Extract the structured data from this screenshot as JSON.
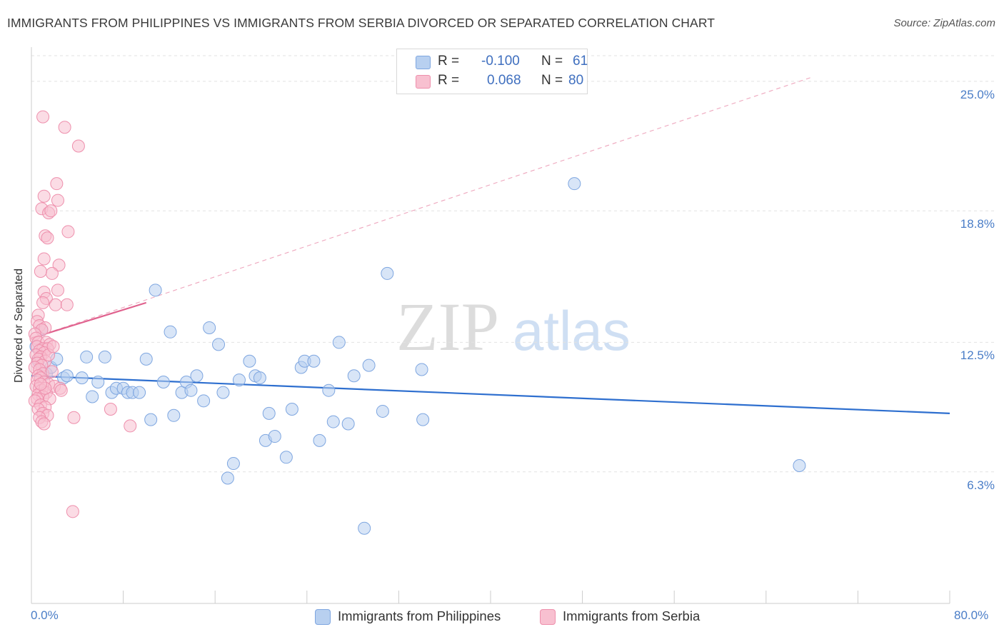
{
  "title": "IMMIGRANTS FROM PHILIPPINES VS IMMIGRANTS FROM SERBIA DIVORCED OR SEPARATED CORRELATION CHART",
  "source": "Source: ZipAtlas.com",
  "watermark": {
    "zip": "ZIP",
    "atlas": "atlas"
  },
  "legend": {
    "r_label": "R =",
    "n_label": "N =",
    "rows": [
      {
        "r": "-0.100",
        "n": "61",
        "color": "#b8d0f0",
        "border": "#7ea6e0"
      },
      {
        "r": "0.068",
        "n": "80",
        "color": "#f8c0d0",
        "border": "#ee8fac"
      }
    ]
  },
  "chart_data": {
    "type": "scatter",
    "title": "IMMIGRANTS FROM PHILIPPINES VS IMMIGRANTS FROM SERBIA DIVORCED OR SEPARATED CORRELATION CHART",
    "xlabel": "",
    "ylabel": "Divorced or Separated",
    "xlim": [
      0,
      80
    ],
    "ylim": [
      0,
      26.5
    ],
    "x_tick_labels": [
      "0.0%",
      "80.0%"
    ],
    "y_ticks": [
      6.3,
      12.5,
      18.8,
      25.0
    ],
    "y_tick_labels": [
      "6.3%",
      "12.5%",
      "18.8%",
      "25.0%"
    ],
    "grid": true,
    "series": [
      {
        "name": "Immigrants from Philippines",
        "color": "#7ea6e0",
        "fill": "#b8d0f0",
        "trend": {
          "x": [
            0.0,
            80.0
          ],
          "y": [
            10.9,
            9.1
          ],
          "color": "#2e6fcf"
        },
        "points": [
          [
            0.6,
            11.6
          ],
          [
            0.9,
            13.1
          ],
          [
            1.3,
            11.0
          ],
          [
            1.7,
            11.3
          ],
          [
            2.2,
            11.7
          ],
          [
            2.8,
            10.8
          ],
          [
            3.1,
            10.9
          ],
          [
            4.4,
            10.8
          ],
          [
            4.8,
            11.8
          ],
          [
            5.3,
            9.9
          ],
          [
            5.8,
            10.6
          ],
          [
            6.4,
            11.8
          ],
          [
            7.0,
            10.1
          ],
          [
            7.4,
            10.3
          ],
          [
            8.0,
            10.3
          ],
          [
            8.4,
            10.1
          ],
          [
            8.8,
            10.1
          ],
          [
            9.4,
            10.1
          ],
          [
            10.0,
            11.7
          ],
          [
            10.4,
            8.8
          ],
          [
            10.8,
            15.0
          ],
          [
            11.5,
            10.6
          ],
          [
            12.1,
            13.0
          ],
          [
            12.4,
            9.0
          ],
          [
            13.1,
            10.1
          ],
          [
            13.5,
            10.6
          ],
          [
            13.9,
            10.2
          ],
          [
            14.4,
            10.9
          ],
          [
            15.0,
            9.7
          ],
          [
            15.5,
            13.2
          ],
          [
            16.3,
            12.4
          ],
          [
            16.7,
            10.1
          ],
          [
            17.1,
            6.0
          ],
          [
            17.6,
            6.7
          ],
          [
            18.1,
            10.7
          ],
          [
            19.0,
            11.6
          ],
          [
            19.5,
            10.9
          ],
          [
            19.9,
            10.8
          ],
          [
            20.4,
            7.8
          ],
          [
            20.7,
            9.1
          ],
          [
            21.2,
            8.0
          ],
          [
            22.2,
            7.0
          ],
          [
            22.7,
            9.3
          ],
          [
            23.5,
            11.3
          ],
          [
            23.8,
            11.6
          ],
          [
            24.6,
            11.6
          ],
          [
            25.1,
            7.8
          ],
          [
            25.9,
            10.2
          ],
          [
            26.3,
            8.7
          ],
          [
            26.8,
            12.5
          ],
          [
            27.6,
            8.6
          ],
          [
            28.1,
            10.9
          ],
          [
            29.0,
            3.6
          ],
          [
            29.4,
            11.4
          ],
          [
            30.6,
            9.2
          ],
          [
            31.0,
            15.8
          ],
          [
            34.0,
            11.2
          ],
          [
            34.1,
            8.8
          ],
          [
            47.3,
            20.1
          ],
          [
            66.9,
            6.6
          ],
          [
            0.4,
            12.3
          ]
        ]
      },
      {
        "name": "Immigrants from Serbia",
        "color": "#ee8fac",
        "fill": "#f8c0d0",
        "trend": {
          "x": [
            0.0,
            10.0
          ],
          "y": [
            12.7,
            14.4
          ],
          "color": "#e0628e"
        },
        "trend_extended": {
          "x": [
            0.0,
            68.0
          ],
          "y": [
            12.7,
            25.2
          ]
        },
        "points": [
          [
            1.0,
            23.3
          ],
          [
            2.9,
            22.8
          ],
          [
            4.1,
            21.9
          ],
          [
            2.2,
            20.1
          ],
          [
            1.1,
            19.5
          ],
          [
            2.3,
            19.3
          ],
          [
            0.9,
            18.9
          ],
          [
            1.5,
            18.7
          ],
          [
            1.7,
            18.8
          ],
          [
            3.2,
            17.8
          ],
          [
            1.2,
            17.6
          ],
          [
            1.4,
            17.5
          ],
          [
            1.1,
            16.5
          ],
          [
            2.4,
            16.2
          ],
          [
            1.8,
            15.8
          ],
          [
            0.8,
            15.9
          ],
          [
            2.3,
            15.0
          ],
          [
            1.1,
            14.9
          ],
          [
            1.3,
            14.6
          ],
          [
            1.0,
            14.4
          ],
          [
            2.1,
            14.3
          ],
          [
            3.1,
            14.3
          ],
          [
            0.6,
            13.8
          ],
          [
            0.5,
            13.5
          ],
          [
            0.7,
            13.3
          ],
          [
            1.2,
            13.2
          ],
          [
            0.9,
            13.1
          ],
          [
            0.3,
            12.9
          ],
          [
            0.4,
            12.7
          ],
          [
            0.6,
            12.5
          ],
          [
            1.3,
            12.5
          ],
          [
            1.6,
            12.4
          ],
          [
            0.5,
            12.3
          ],
          [
            1.0,
            12.2
          ],
          [
            1.4,
            12.2
          ],
          [
            0.7,
            12.1
          ],
          [
            1.1,
            12.0
          ],
          [
            0.4,
            11.9
          ],
          [
            0.8,
            11.8
          ],
          [
            0.6,
            11.7
          ],
          [
            1.2,
            11.6
          ],
          [
            0.5,
            11.5
          ],
          [
            0.9,
            11.4
          ],
          [
            0.3,
            11.3
          ],
          [
            0.7,
            11.2
          ],
          [
            1.0,
            11.0
          ],
          [
            0.6,
            10.9
          ],
          [
            0.8,
            10.8
          ],
          [
            0.5,
            10.7
          ],
          [
            1.1,
            10.6
          ],
          [
            1.5,
            10.5
          ],
          [
            0.4,
            10.4
          ],
          [
            0.7,
            10.3
          ],
          [
            0.9,
            10.2
          ],
          [
            1.3,
            10.1
          ],
          [
            0.6,
            10.0
          ],
          [
            1.0,
            9.9
          ],
          [
            0.5,
            9.8
          ],
          [
            1.6,
            9.8
          ],
          [
            0.3,
            9.7
          ],
          [
            0.8,
            9.5
          ],
          [
            1.2,
            9.4
          ],
          [
            0.6,
            9.3
          ],
          [
            1.0,
            9.1
          ],
          [
            1.4,
            9.0
          ],
          [
            0.7,
            8.9
          ],
          [
            0.9,
            8.7
          ],
          [
            1.1,
            8.6
          ],
          [
            3.7,
            8.9
          ],
          [
            6.9,
            9.3
          ],
          [
            8.6,
            8.5
          ],
          [
            3.6,
            4.4
          ],
          [
            2.0,
            10.4
          ],
          [
            2.5,
            10.3
          ],
          [
            1.8,
            11.1
          ],
          [
            2.6,
            10.2
          ],
          [
            1.2,
            10.3
          ],
          [
            0.8,
            10.5
          ],
          [
            1.5,
            11.9
          ],
          [
            1.9,
            12.3
          ]
        ]
      }
    ]
  },
  "bottom_legend": [
    {
      "label": "Immigrants from Philippines",
      "color": "#b8d0f0",
      "border": "#7ea6e0"
    },
    {
      "label": "Immigrants from Serbia",
      "color": "#f8c0d0",
      "border": "#ee8fac"
    }
  ]
}
